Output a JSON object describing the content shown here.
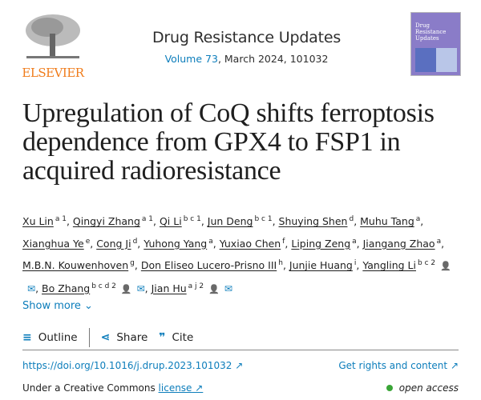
{
  "publisher": {
    "name": "ELSEVIER"
  },
  "journal": {
    "title": "Drug Resistance Updates",
    "volume_link": "Volume 73",
    "issue_rest": ", March 2024, 101032",
    "cover_text": "Drug Resistance Updates"
  },
  "article": {
    "title": "Upregulation of CoQ shifts ferroptosis dependence from GPX4 to FSP1 in acquired radioresistance"
  },
  "authors": [
    {
      "name": "Xu Lin",
      "sup": "a 1"
    },
    {
      "name": "Qingyi Zhang",
      "sup": "a 1"
    },
    {
      "name": "Qi Li",
      "sup": "b c 1"
    },
    {
      "name": "Jun Deng",
      "sup": "b c 1"
    },
    {
      "name": "Shuying Shen",
      "sup": "d"
    },
    {
      "name": "Muhu Tang",
      "sup": "a"
    },
    {
      "name": "Xianghua Ye",
      "sup": "e"
    },
    {
      "name": "Cong Ji",
      "sup": "d"
    },
    {
      "name": "Yuhong Yang",
      "sup": "a"
    },
    {
      "name": "Yuxiao Chen",
      "sup": "f"
    },
    {
      "name": "Liping Zeng",
      "sup": "a"
    },
    {
      "name": "Jiangang Zhao",
      "sup": "a"
    },
    {
      "name": "M.B.N. Kouwenhoven",
      "sup": "g"
    },
    {
      "name": "Don Eliseo Lucero-Prisno III",
      "sup": "h"
    },
    {
      "name": "Junjie Huang",
      "sup": "i"
    },
    {
      "name": "Yangling Li",
      "sup": "b c 2",
      "contact": true
    },
    {
      "name": "Bo Zhang",
      "sup": "b c d 2",
      "contact": true
    },
    {
      "name": "Jian Hu",
      "sup": "a j 2",
      "contact": true
    }
  ],
  "show_more": "Show more",
  "toolbar": {
    "outline": "Outline",
    "share": "Share",
    "cite": "Cite"
  },
  "links": {
    "doi": "https://doi.org/10.1016/j.drup.2023.101032",
    "rights": "Get rights and content"
  },
  "license": {
    "prefix": "Under a Creative Commons ",
    "link": "license",
    "access": "open access"
  },
  "colors": {
    "link": "#0c7dbb",
    "elsevier": "#f07c1b",
    "open_access": "#3aa537"
  }
}
